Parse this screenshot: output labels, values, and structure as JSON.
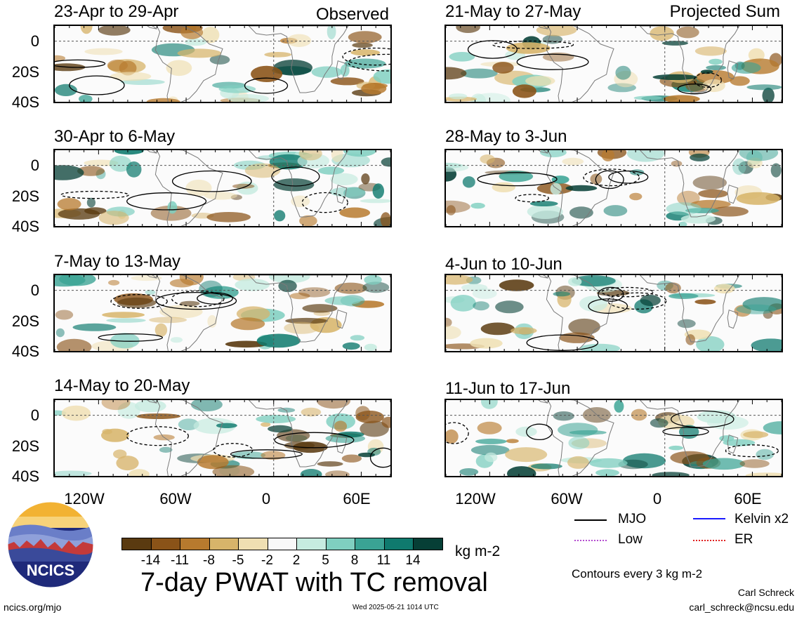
{
  "panels_left": [
    {
      "title": "23-Apr to 29-Apr",
      "tag": "Observed"
    },
    {
      "title": "30-Apr to 6-May",
      "tag": ""
    },
    {
      "title": "7-May to 13-May",
      "tag": ""
    },
    {
      "title": "14-May to 20-May",
      "tag": ""
    }
  ],
  "panels_right": [
    {
      "title": "21-May to 27-May",
      "tag": "Projected Sum"
    },
    {
      "title": "28-May to 3-Jun",
      "tag": ""
    },
    {
      "title": "4-Jun to 10-Jun",
      "tag": ""
    },
    {
      "title": "11-Jun to 17-Jun",
      "tag": ""
    }
  ],
  "lat_labels": [
    "0",
    "20S",
    "40S"
  ],
  "lon_labels": [
    "120W",
    "60W",
    "0",
    "60E"
  ],
  "colorbar": {
    "labels": [
      "-14",
      "-11",
      "-8",
      "-5",
      "-2",
      "2",
      "5",
      "8",
      "11",
      "14"
    ],
    "colors": [
      "#5a3a10",
      "#8a5318",
      "#b77a2e",
      "#d7b46a",
      "#efdfb2",
      "#f8f8f8",
      "#c6ebe0",
      "#7fcfc0",
      "#3aa394",
      "#0f7a6e",
      "#063f36"
    ],
    "units": "kg m-2"
  },
  "title": "7-day PWAT with TC removal",
  "legend": {
    "mjo": "MJO",
    "kelvin": "Kelvin x2",
    "low": "Low",
    "er": "ER",
    "contour_note": "Contours every 3 kg m-2",
    "colors": {
      "mjo": "#000000",
      "kelvin": "#1a1aff",
      "low": "#b44cd0",
      "er": "#e02020"
    }
  },
  "logo": {
    "text": "NCICS"
  },
  "footer": {
    "left": "ncics.org/mjo",
    "center": "Wed 2025-05-21 1014 UTC",
    "author": "Carl Schreck",
    "email": "carl_schreck@ncsu.edu"
  }
}
